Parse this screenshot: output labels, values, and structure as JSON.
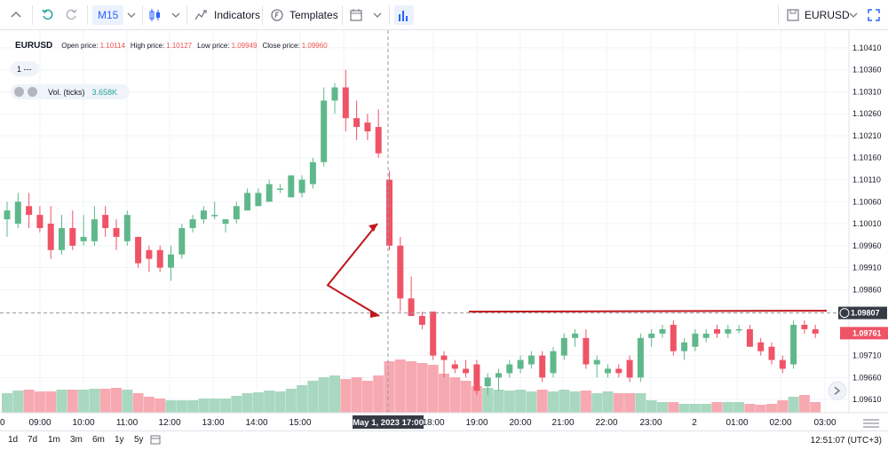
{
  "toolbar": {
    "interval": "M15",
    "indicators_label": "Indicators",
    "templates_label": "Templates",
    "symbol": "EURUSD"
  },
  "legend": {
    "symbol": "EURUSD",
    "open_label": "Open price:",
    "open_value": "1.10114",
    "high_label": "High price:",
    "high_value": "1.10127",
    "low_label": "Low price:",
    "low_value": "1.09949",
    "close_label": "Close price:",
    "close_value": "1.09960",
    "collapsed_value": "1 ---",
    "vol_label": "Vol. (ticks)",
    "vol_value": "3.658K"
  },
  "crosshair": {
    "time_label": "May 1, 2023 17:00",
    "price_label": "1.09807"
  },
  "last_price_label": "1.09761",
  "bottom": {
    "ranges": [
      "1d",
      "7d",
      "1m",
      "3m",
      "6m",
      "1y",
      "5y"
    ],
    "clock": "12:51:07 (UTC+3)"
  },
  "colors": {
    "up": "#5fb88b",
    "down": "#ef5366",
    "vol_up": "#a8d8c0",
    "vol_down": "#f7a9b2",
    "annotation": "#c0171b",
    "accent": "#2962ff"
  },
  "chart_data": {
    "type": "candlestick",
    "symbol": "EURUSD",
    "timeframe": "M15",
    "y_ticks": [
      "1.10410",
      "1.10360",
      "1.10310",
      "1.10260",
      "1.10210",
      "1.10160",
      "1.10110",
      "1.10060",
      "1.10010",
      "1.09960",
      "1.09910",
      "1.09860",
      "1.09710",
      "1.09660",
      "1.09610"
    ],
    "x_ticks": [
      "09:00",
      "10:00",
      "11:00",
      "12:00",
      "13:00",
      "14:00",
      "15:00",
      "16:00",
      "18:00",
      "19:00",
      "20:00",
      "21:00",
      "22:00",
      "23:00",
      "2",
      "01:00",
      "02:00",
      "03:00"
    ],
    "ylim": [
      1.0958,
      1.1043
    ],
    "candles": [
      {
        "o": 1.1002,
        "h": 1.1006,
        "l": 1.0998,
        "c": 1.1004
      },
      {
        "o": 1.1001,
        "h": 1.1008,
        "l": 1.1,
        "c": 1.1006
      },
      {
        "o": 1.1005,
        "h": 1.1008,
        "l": 1.1,
        "c": 1.1003
      },
      {
        "o": 1.1003,
        "h": 1.1005,
        "l": 1.0999,
        "c": 1.1
      },
      {
        "o": 1.1001,
        "h": 1.1005,
        "l": 1.0993,
        "c": 1.0995
      },
      {
        "o": 1.0995,
        "h": 1.1003,
        "l": 1.0994,
        "c": 1.1
      },
      {
        "o": 1.1,
        "h": 1.1004,
        "l": 1.0995,
        "c": 1.0996
      },
      {
        "o": 1.0997,
        "h": 1.1003,
        "l": 1.0996,
        "c": 1.0998
      },
      {
        "o": 1.0997,
        "h": 1.1005,
        "l": 1.0996,
        "c": 1.1002
      },
      {
        "o": 1.1003,
        "h": 1.1005,
        "l": 1.0998,
        "c": 1.1
      },
      {
        "o": 1.1,
        "h": 1.1002,
        "l": 1.0995,
        "c": 1.0998
      },
      {
        "o": 1.0997,
        "h": 1.1004,
        "l": 1.0996,
        "c": 1.1003
      },
      {
        "o": 1.0998,
        "h": 1.0998,
        "l": 1.0991,
        "c": 1.0992
      },
      {
        "o": 1.0995,
        "h": 1.0996,
        "l": 1.099,
        "c": 1.0993
      },
      {
        "o": 1.0995,
        "h": 1.0996,
        "l": 1.099,
        "c": 1.0991
      },
      {
        "o": 1.0991,
        "h": 1.0996,
        "l": 1.0988,
        "c": 1.0994
      },
      {
        "o": 1.0994,
        "h": 1.1001,
        "l": 1.0993,
        "c": 1.1
      },
      {
        "o": 1.1,
        "h": 1.1003,
        "l": 1.0999,
        "c": 1.1002
      },
      {
        "o": 1.1002,
        "h": 1.1005,
        "l": 1.1001,
        "c": 1.1004
      },
      {
        "o": 1.1003,
        "h": 1.1006,
        "l": 1.1002,
        "c": 1.1003
      },
      {
        "o": 1.1001,
        "h": 1.1002,
        "l": 1.0999,
        "c": 1.1002
      },
      {
        "o": 1.1002,
        "h": 1.1006,
        "l": 1.1001,
        "c": 1.1005
      },
      {
        "o": 1.1004,
        "h": 1.1009,
        "l": 1.1004,
        "c": 1.1008
      },
      {
        "o": 1.1005,
        "h": 1.1009,
        "l": 1.1005,
        "c": 1.1008
      },
      {
        "o": 1.1006,
        "h": 1.1011,
        "l": 1.1006,
        "c": 1.101
      },
      {
        "o": 1.1009,
        "h": 1.101,
        "l": 1.1008,
        "c": 1.1009
      },
      {
        "o": 1.1007,
        "h": 1.1012,
        "l": 1.1007,
        "c": 1.1012
      },
      {
        "o": 1.1008,
        "h": 1.1012,
        "l": 1.1007,
        "c": 1.1011
      },
      {
        "o": 1.101,
        "h": 1.1016,
        "l": 1.1009,
        "c": 1.1015
      },
      {
        "o": 1.1015,
        "h": 1.1032,
        "l": 1.1014,
        "c": 1.1029
      },
      {
        "o": 1.1029,
        "h": 1.1033,
        "l": 1.1026,
        "c": 1.1032
      },
      {
        "o": 1.1032,
        "h": 1.1036,
        "l": 1.1022,
        "c": 1.1025
      },
      {
        "o": 1.1025,
        "h": 1.1029,
        "l": 1.102,
        "c": 1.1023
      },
      {
        "o": 1.1024,
        "h": 1.1026,
        "l": 1.102,
        "c": 1.1022
      },
      {
        "o": 1.1023,
        "h": 1.1027,
        "l": 1.1016,
        "c": 1.1017
      },
      {
        "o": 1.1011,
        "h": 1.1013,
        "l": 1.0995,
        "c": 1.0996
      },
      {
        "o": 1.0996,
        "h": 1.0998,
        "l": 1.0981,
        "c": 1.0984
      },
      {
        "o": 1.0984,
        "h": 1.0989,
        "l": 1.098,
        "c": 1.098
      },
      {
        "o": 1.098,
        "h": 1.0981,
        "l": 1.0977,
        "c": 1.0978
      },
      {
        "o": 1.0981,
        "h": 1.0981,
        "l": 1.097,
        "c": 1.0971
      },
      {
        "o": 1.0971,
        "h": 1.0972,
        "l": 1.0966,
        "c": 1.097
      },
      {
        "o": 1.0969,
        "h": 1.097,
        "l": 1.0967,
        "c": 1.0968
      },
      {
        "o": 1.0968,
        "h": 1.097,
        "l": 1.0966,
        "c": 1.0967
      },
      {
        "o": 1.0969,
        "h": 1.097,
        "l": 1.0962,
        "c": 1.0963
      },
      {
        "o": 1.0964,
        "h": 1.0967,
        "l": 1.0962,
        "c": 1.0966
      },
      {
        "o": 1.0966,
        "h": 1.0968,
        "l": 1.0963,
        "c": 1.0967
      },
      {
        "o": 1.0967,
        "h": 1.097,
        "l": 1.0966,
        "c": 1.0969
      },
      {
        "o": 1.0968,
        "h": 1.0971,
        "l": 1.0967,
        "c": 1.097
      },
      {
        "o": 1.0969,
        "h": 1.0972,
        "l": 1.0968,
        "c": 1.0971
      },
      {
        "o": 1.0971,
        "h": 1.0972,
        "l": 1.0965,
        "c": 1.0966
      },
      {
        "o": 1.0967,
        "h": 1.0973,
        "l": 1.0966,
        "c": 1.0972
      },
      {
        "o": 1.0971,
        "h": 1.0976,
        "l": 1.097,
        "c": 1.0975
      },
      {
        "o": 1.0975,
        "h": 1.0977,
        "l": 1.0973,
        "c": 1.0976
      },
      {
        "o": 1.0975,
        "h": 1.0977,
        "l": 1.0968,
        "c": 1.0969
      },
      {
        "o": 1.0969,
        "h": 1.0971,
        "l": 1.0966,
        "c": 1.097
      },
      {
        "o": 1.0967,
        "h": 1.0969,
        "l": 1.0966,
        "c": 1.0968
      },
      {
        "o": 1.0968,
        "h": 1.0969,
        "l": 1.0966,
        "c": 1.0967
      },
      {
        "o": 1.097,
        "h": 1.0971,
        "l": 1.0965,
        "c": 1.0966
      },
      {
        "o": 1.0966,
        "h": 1.0976,
        "l": 1.0965,
        "c": 1.0975
      },
      {
        "o": 1.0975,
        "h": 1.0977,
        "l": 1.0973,
        "c": 1.0976
      },
      {
        "o": 1.0976,
        "h": 1.0978,
        "l": 1.0975,
        "c": 1.0977
      },
      {
        "o": 1.0978,
        "h": 1.0979,
        "l": 1.0971,
        "c": 1.0972
      },
      {
        "o": 1.0972,
        "h": 1.0975,
        "l": 1.097,
        "c": 1.0974
      },
      {
        "o": 1.0973,
        "h": 1.0977,
        "l": 1.0972,
        "c": 1.0976
      },
      {
        "o": 1.0975,
        "h": 1.0977,
        "l": 1.0974,
        "c": 1.0976
      },
      {
        "o": 1.0977,
        "h": 1.0978,
        "l": 1.0975,
        "c": 1.0976
      },
      {
        "o": 1.0976,
        "h": 1.0978,
        "l": 1.0975,
        "c": 1.0977
      },
      {
        "o": 1.0977,
        "h": 1.0978,
        "l": 1.0976,
        "c": 1.0977
      },
      {
        "o": 1.0977,
        "h": 1.0978,
        "l": 1.0973,
        "c": 1.0973
      },
      {
        "o": 1.0974,
        "h": 1.0975,
        "l": 1.0971,
        "c": 1.0972
      },
      {
        "o": 1.0973,
        "h": 1.0974,
        "l": 1.0969,
        "c": 1.097
      },
      {
        "o": 1.097,
        "h": 1.0971,
        "l": 1.0967,
        "c": 1.0968
      },
      {
        "o": 1.0969,
        "h": 1.0979,
        "l": 1.0968,
        "c": 1.0978
      },
      {
        "o": 1.0978,
        "h": 1.0979,
        "l": 1.0976,
        "c": 1.0977
      },
      {
        "o": 1.0977,
        "h": 1.0978,
        "l": 1.0975,
        "c": 1.0976
      }
    ],
    "volume": [
      22,
      25,
      26,
      24,
      24,
      26,
      26,
      26,
      27,
      27,
      28,
      26,
      22,
      18,
      16,
      14,
      14,
      14,
      16,
      16,
      16,
      19,
      22,
      23,
      25,
      24,
      27,
      31,
      36,
      40,
      42,
      38,
      40,
      36,
      42,
      58,
      60,
      58,
      56,
      54,
      44,
      40,
      36,
      30,
      28,
      26,
      25,
      26,
      24,
      26,
      24,
      26,
      24,
      25,
      22,
      24,
      22,
      22,
      22,
      14,
      12,
      12,
      10,
      10,
      10,
      12,
      12,
      12,
      10,
      9,
      10,
      14,
      18,
      20,
      12
    ],
    "sessions": [
      "May 1, 2023"
    ],
    "annotations": [
      {
        "type": "arrow",
        "color": "#c0171b"
      },
      {
        "type": "horizontal_line",
        "price": 1.0981,
        "color": "#c0171b"
      }
    ]
  }
}
